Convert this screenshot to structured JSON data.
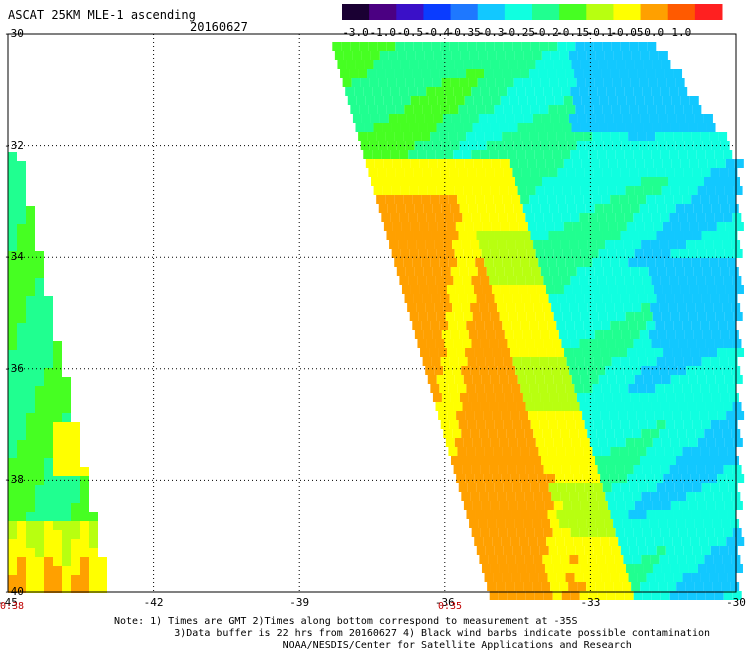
{
  "header": {
    "title": "ASCAT 25KM MLE-1 ascending",
    "date": "20160627"
  },
  "colorbar": {
    "labels": [
      "-3.0",
      "-1.0",
      "-0.5",
      "-0.4",
      "-0.35",
      "-0.3",
      "-0.25",
      "-0.2",
      "-0.15",
      "-0.1",
      "-0.05",
      "0.0",
      "1.0"
    ],
    "colors": [
      "#1a0033",
      "#4b0082",
      "#3a10c8",
      "#0a3cff",
      "#1e78ff",
      "#12c8ff",
      "#10ffe0",
      "#20ff90",
      "#46ff22",
      "#b8ff10",
      "#ffff00",
      "#ffa000",
      "#ff5a00",
      "#ff2020"
    ]
  },
  "axes": {
    "x_ticks": [
      "-45",
      "-42",
      "-39",
      "-36",
      "-33",
      "-30"
    ],
    "y_ticks": [
      "-30",
      "-32",
      "-34",
      "-36",
      "-38",
      "-40"
    ],
    "lon_range": [
      -45,
      -30
    ],
    "lat_range": [
      -40,
      -30
    ]
  },
  "swath_times": [
    "0:38",
    "0:35"
  ],
  "notes": {
    "line1": "Note: 1) Times are GMT 2)Times along bottom correspond to measurement at -35S",
    "line2": "3)Data buffer is 22 hrs from 20160627 4) Black wind barbs indicate possible contamination",
    "line3": "NOAA/NESDIS/Center for Satellite Applications and Research"
  }
}
